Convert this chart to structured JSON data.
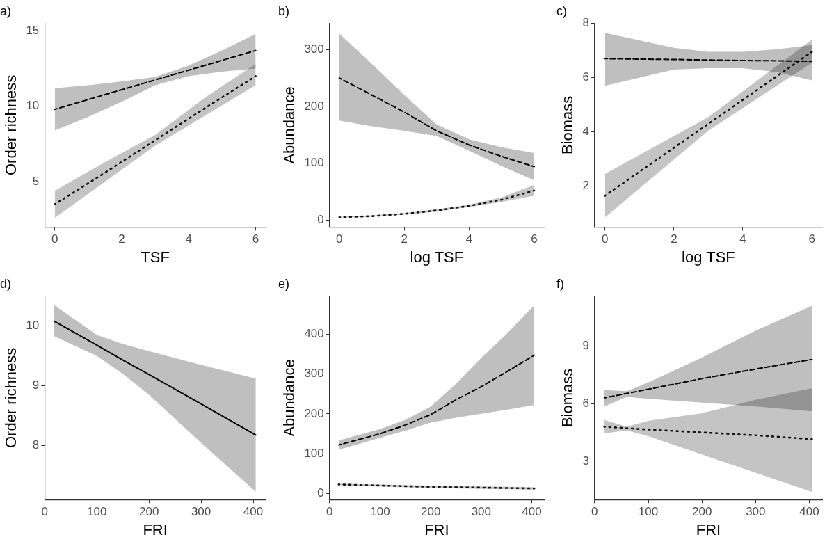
{
  "chart_data": [
    {
      "type": "line",
      "title": "a)",
      "xlabel": "TSF",
      "ylabel": "Order richness",
      "xlim": [
        -0.3,
        6.3
      ],
      "xticks": [
        0,
        2,
        4,
        6
      ],
      "ylim": [
        2,
        15.5
      ],
      "yticks": [
        5,
        10,
        15
      ],
      "grid": false,
      "legend": false,
      "series": [
        {
          "color": "#000000",
          "line_style": "dashed",
          "x": [
            0,
            1,
            2,
            3,
            4,
            5,
            6
          ],
          "values": [
            9.8,
            10.45,
            11.1,
            11.75,
            12.4,
            13.05,
            13.7
          ],
          "lower": [
            8.4,
            9.3,
            10.3,
            11.4,
            12.0,
            12.3,
            12.5
          ],
          "upper": [
            11.2,
            11.4,
            11.65,
            11.95,
            12.7,
            13.7,
            14.8
          ]
        },
        {
          "color": "#141414",
          "line_style": "dotted",
          "x": [
            0,
            1.5,
            3,
            4.5,
            6
          ],
          "values": [
            3.5,
            5.6,
            7.75,
            9.9,
            12.0
          ],
          "lower": [
            2.6,
            5.0,
            7.4,
            9.4,
            11.4
          ],
          "upper": [
            4.4,
            6.3,
            8.1,
            10.6,
            12.8
          ]
        }
      ]
    },
    {
      "type": "line",
      "title": "b)",
      "xlabel": "log TSF",
      "ylabel": "Abundance",
      "xlim": [
        -0.3,
        6.3
      ],
      "xticks": [
        0,
        2,
        4,
        6
      ],
      "ylim": [
        -12,
        346
      ],
      "yticks": [
        0,
        100,
        200,
        300
      ],
      "grid": false,
      "legend": false,
      "series": [
        {
          "color": "#000000",
          "line_style": "dashed",
          "x": [
            0,
            1,
            2,
            3,
            4,
            5,
            6
          ],
          "values": [
            250,
            220,
            190,
            157,
            132,
            112,
            94
          ],
          "lower": [
            175,
            165,
            157,
            148,
            122,
            95,
            70
          ],
          "upper": [
            328,
            275,
            220,
            168,
            142,
            128,
            118
          ]
        },
        {
          "color": "#141414",
          "line_style": "dotted",
          "x": [
            0,
            1,
            2,
            3,
            4,
            5,
            6
          ],
          "values": [
            5,
            7,
            11,
            17,
            25,
            36,
            52
          ],
          "lower": [
            4,
            6,
            10,
            15,
            23,
            32,
            43
          ],
          "upper": [
            6,
            8,
            12,
            19,
            27,
            40,
            62
          ]
        }
      ]
    },
    {
      "type": "line",
      "title": "c)",
      "xlabel": "log TSF",
      "ylabel": "Biomass",
      "xlim": [
        -0.3,
        6.3
      ],
      "xticks": [
        0,
        2,
        4,
        6
      ],
      "ylim": [
        0.5,
        8
      ],
      "yticks": [
        2,
        4,
        6,
        8
      ],
      "grid": false,
      "legend": false,
      "series": [
        {
          "color": "#000000",
          "line_style": "dashed",
          "x": [
            0,
            2,
            3,
            4,
            5,
            6
          ],
          "values": [
            6.7,
            6.67,
            6.65,
            6.63,
            6.62,
            6.6
          ],
          "lower": [
            5.7,
            6.3,
            6.35,
            6.35,
            6.2,
            5.9
          ],
          "upper": [
            7.65,
            7.1,
            6.95,
            6.95,
            7.05,
            7.2
          ]
        },
        {
          "color": "#141414",
          "line_style": "dotted",
          "x": [
            0,
            3,
            6
          ],
          "values": [
            1.65,
            4.3,
            6.95
          ],
          "lower": [
            0.85,
            4.05,
            6.55
          ],
          "upper": [
            2.45,
            4.55,
            7.4
          ]
        }
      ]
    },
    {
      "type": "line",
      "title": "d)",
      "xlabel": "FRI",
      "ylabel": "Order richness",
      "xlim": [
        0,
        424
      ],
      "xticks": [
        0,
        100,
        200,
        300,
        400
      ],
      "ylim": [
        7.1,
        10.5
      ],
      "yticks": [
        8,
        9,
        10
      ],
      "grid": false,
      "legend": false,
      "series": [
        {
          "color": "#000000",
          "line_style": "solid",
          "x": [
            18,
            100,
            150,
            200,
            300,
            405
          ],
          "values": [
            10.08,
            9.68,
            9.43,
            9.19,
            8.7,
            8.18
          ],
          "lower": [
            9.83,
            9.5,
            9.2,
            8.85,
            8.05,
            7.23
          ],
          "upper": [
            10.35,
            9.85,
            9.7,
            9.58,
            9.35,
            9.12
          ]
        }
      ]
    },
    {
      "type": "line",
      "title": "e)",
      "xlabel": "FRI",
      "ylabel": "Abundance",
      "xlim": [
        0,
        424
      ],
      "xticks": [
        0,
        100,
        200,
        300,
        400
      ],
      "ylim": [
        -15,
        495
      ],
      "yticks": [
        0,
        100,
        200,
        300,
        400
      ],
      "grid": false,
      "legend": false,
      "series": [
        {
          "color": "#000000",
          "line_style": "dashed",
          "x": [
            18,
            100,
            150,
            200,
            250,
            300,
            350,
            405
          ],
          "values": [
            122,
            150,
            172,
            198,
            235,
            268,
            305,
            347
          ],
          "lower": [
            110,
            140,
            158,
            178,
            190,
            200,
            210,
            222
          ],
          "upper": [
            133,
            162,
            185,
            218,
            275,
            340,
            400,
            472
          ]
        },
        {
          "color": "#141414",
          "line_style": "dotted",
          "x": [
            18,
            200,
            405
          ],
          "values": [
            23,
            17,
            13
          ],
          "lower": [
            21,
            14,
            10
          ],
          "upper": [
            25,
            20,
            16
          ]
        }
      ]
    },
    {
      "type": "line",
      "title": "f)",
      "xlabel": "FRI",
      "ylabel": "Biomass",
      "xlim": [
        0,
        424
      ],
      "xticks": [
        0,
        100,
        200,
        300,
        400
      ],
      "ylim": [
        1,
        11.6
      ],
      "yticks": [
        3,
        6,
        9
      ],
      "grid": false,
      "legend": false,
      "series": [
        {
          "color": "#000000",
          "line_style": "dashed",
          "x": [
            18,
            60,
            100,
            200,
            300,
            405
          ],
          "values": [
            6.3,
            6.53,
            6.75,
            7.3,
            7.8,
            8.3
          ],
          "lower": [
            5.85,
            6.35,
            6.25,
            6.05,
            5.85,
            5.6
          ],
          "upper": [
            6.7,
            6.65,
            7.1,
            8.4,
            9.8,
            11.1
          ]
        },
        {
          "color": "#141414",
          "line_style": "dotted",
          "x": [
            18,
            60,
            100,
            200,
            300,
            405
          ],
          "values": [
            4.8,
            4.72,
            4.65,
            4.5,
            4.35,
            4.15
          ],
          "lower": [
            4.45,
            4.6,
            4.3,
            3.35,
            2.4,
            1.4
          ],
          "upper": [
            5.15,
            4.8,
            5.1,
            5.5,
            6.2,
            6.8
          ]
        }
      ]
    }
  ]
}
